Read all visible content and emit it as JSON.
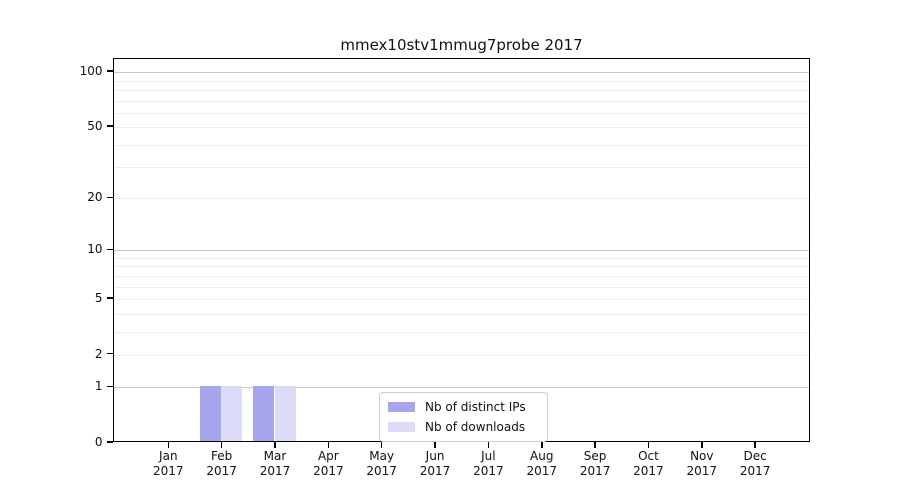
{
  "chart_data": {
    "type": "bar",
    "title": "mmex10stv1mmug7probe 2017",
    "categories": [
      "Jan",
      "Feb",
      "Mar",
      "Apr",
      "May",
      "Jun",
      "Jul",
      "Aug",
      "Sep",
      "Oct",
      "Nov",
      "Dec"
    ],
    "category_year": "2017",
    "series": [
      {
        "name": "Nb of distinct IPs",
        "color": "#a6a6ee",
        "values": [
          0,
          1,
          1,
          0,
          0,
          0,
          0,
          0,
          0,
          0,
          0,
          0
        ]
      },
      {
        "name": "Nb of downloads",
        "color": "#dcdcf8",
        "values": [
          0,
          1,
          1,
          0,
          0,
          0,
          0,
          0,
          0,
          0,
          0,
          0
        ]
      }
    ],
    "xlabel": "",
    "ylabel": "",
    "yscale": "log1p",
    "ylim": [
      0,
      118
    ],
    "y_tick_labels": [
      "100",
      "50",
      "20",
      "10",
      "5",
      "2",
      "1",
      "0"
    ],
    "y_tick_values": [
      100,
      50,
      20,
      10,
      5,
      2,
      1,
      0
    ],
    "y_major_gridlines": [
      1,
      10,
      100
    ],
    "y_minor_gridlines": [
      2,
      3,
      4,
      5,
      6,
      7,
      8,
      9,
      20,
      30,
      40,
      50,
      60,
      70,
      80,
      90
    ],
    "grid": "horizontal",
    "legend_position": "inside-lower-center"
  },
  "colors": {
    "background": "#ffffff",
    "spine": "#000000",
    "text": "#111111",
    "major_grid": "#c9c9c9",
    "minor_grid": "#ededed",
    "bar_distinct_ips": "#a6a6ee",
    "bar_downloads": "#dcdcf8",
    "legend_border": "#cccccc"
  }
}
